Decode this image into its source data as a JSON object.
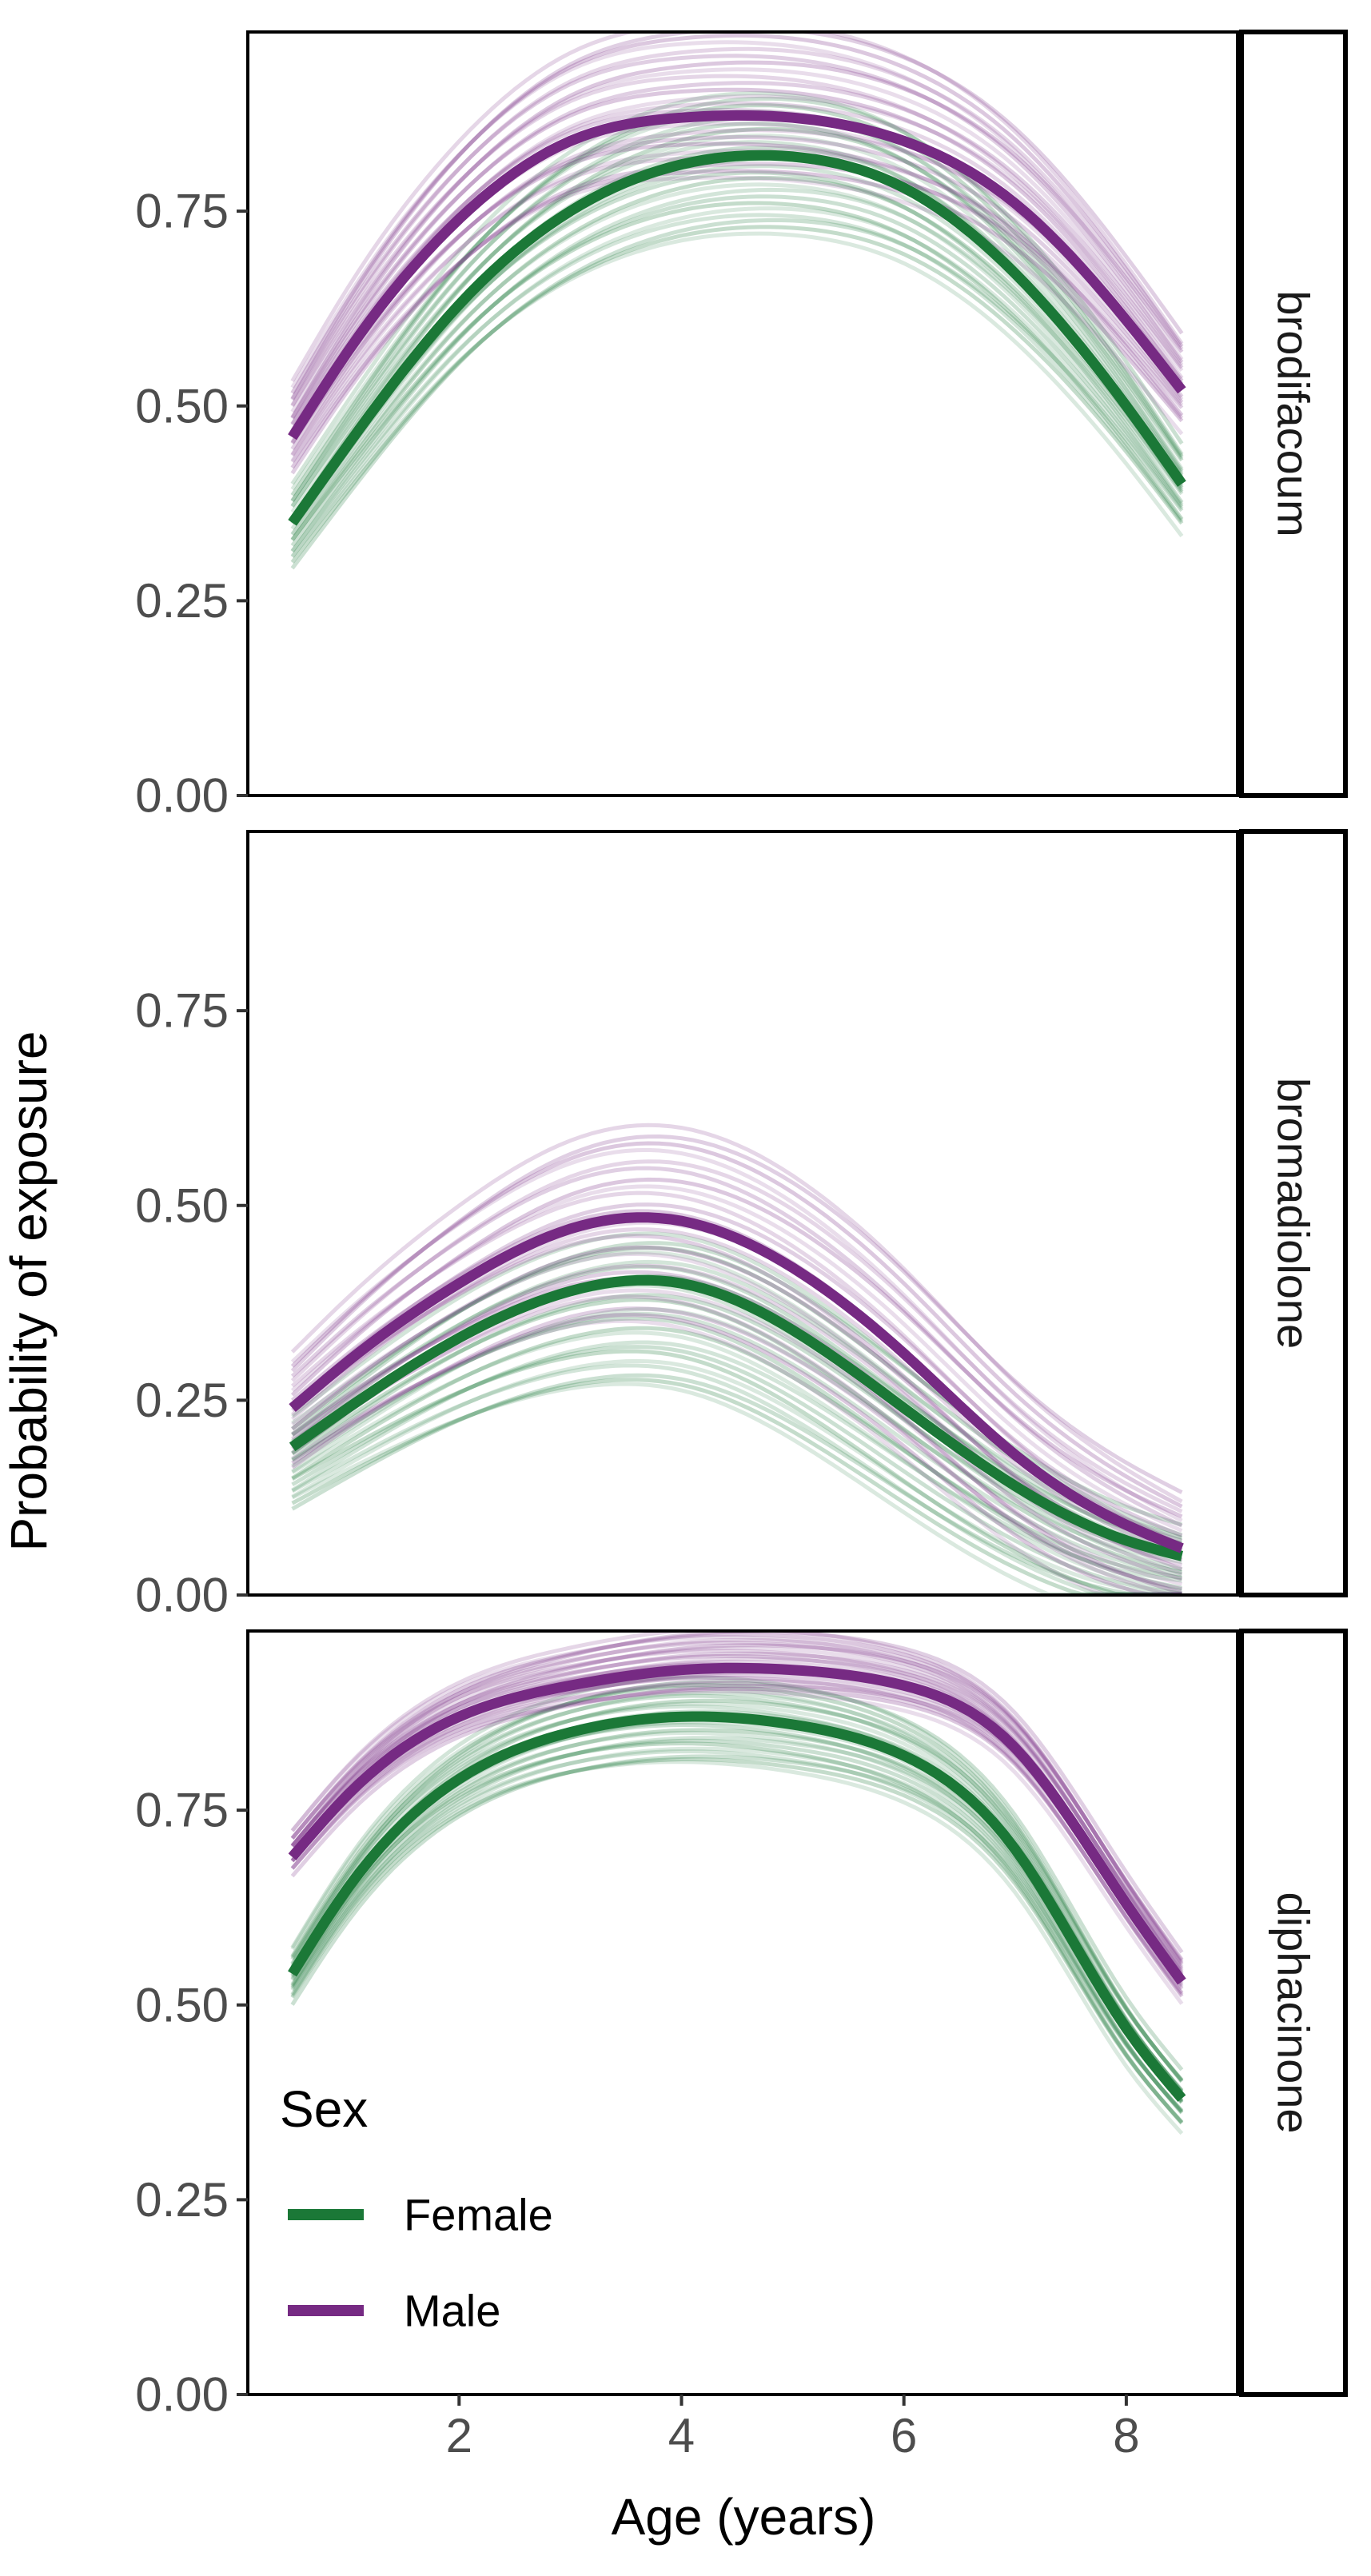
{
  "chart_data": {
    "type": "line",
    "xlabel": "Age (years)",
    "ylabel": "Probability of exposure",
    "xlim": [
      0.1,
      9.0
    ],
    "ylim": [
      0.0,
      0.98
    ],
    "x_ticks": [
      2,
      4,
      6,
      8
    ],
    "x_tick_labels": [
      "2",
      "4",
      "6",
      "8"
    ],
    "y_ticks": [
      0.0,
      0.25,
      0.5,
      0.75
    ],
    "y_tick_labels": [
      "0.00",
      "0.25",
      "0.50",
      "0.75"
    ],
    "grid": false,
    "legend": {
      "title": "Sex",
      "placement": "bottom-left inside the bottom panel",
      "entries": [
        {
          "label": "Female",
          "color": "#1b7837"
        },
        {
          "label": "Male",
          "color": "#762a83"
        }
      ]
    },
    "colors": {
      "Female": "#1b7837",
      "Male": "#762a83"
    },
    "x": [
      0.5,
      1.0,
      2.0,
      3.0,
      4.0,
      5.0,
      6.0,
      7.0,
      8.0,
      8.5
    ],
    "facets": [
      {
        "label": "brodifacoum",
        "series": [
          {
            "name": "Female",
            "values": [
              0.35,
              0.45,
              0.63,
              0.75,
              0.81,
              0.82,
              0.78,
              0.67,
              0.5,
              0.4
            ]
          },
          {
            "name": "Male",
            "values": [
              0.46,
              0.57,
              0.74,
              0.84,
              0.87,
              0.87,
              0.84,
              0.76,
              0.61,
              0.52
            ]
          }
        ],
        "band": {
          "Female": [
            -0.1,
            0.08
          ],
          "Male": [
            -0.08,
            0.12
          ]
        }
      },
      {
        "label": "bromadiolone",
        "series": [
          {
            "name": "Female",
            "values": [
              0.19,
              0.24,
              0.33,
              0.39,
              0.4,
              0.34,
              0.24,
              0.14,
              0.07,
              0.05
            ]
          },
          {
            "name": "Male",
            "values": [
              0.24,
              0.3,
              0.4,
              0.47,
              0.48,
              0.42,
              0.31,
              0.18,
              0.09,
              0.06
            ]
          }
        ],
        "band": {
          "Female": [
            -0.14,
            0.06
          ],
          "Male": [
            -0.14,
            0.12
          ]
        }
      },
      {
        "label": "diphacinone",
        "series": [
          {
            "name": "Female",
            "values": [
              0.54,
              0.65,
              0.79,
              0.85,
              0.87,
              0.86,
              0.82,
              0.7,
              0.47,
              0.38
            ]
          },
          {
            "name": "Male",
            "values": [
              0.69,
              0.77,
              0.87,
              0.91,
              0.93,
              0.93,
              0.91,
              0.83,
              0.63,
              0.53
            ]
          }
        ],
        "band": {
          "Female": [
            -0.06,
            0.05
          ],
          "Male": [
            -0.03,
            0.05
          ]
        }
      }
    ]
  }
}
